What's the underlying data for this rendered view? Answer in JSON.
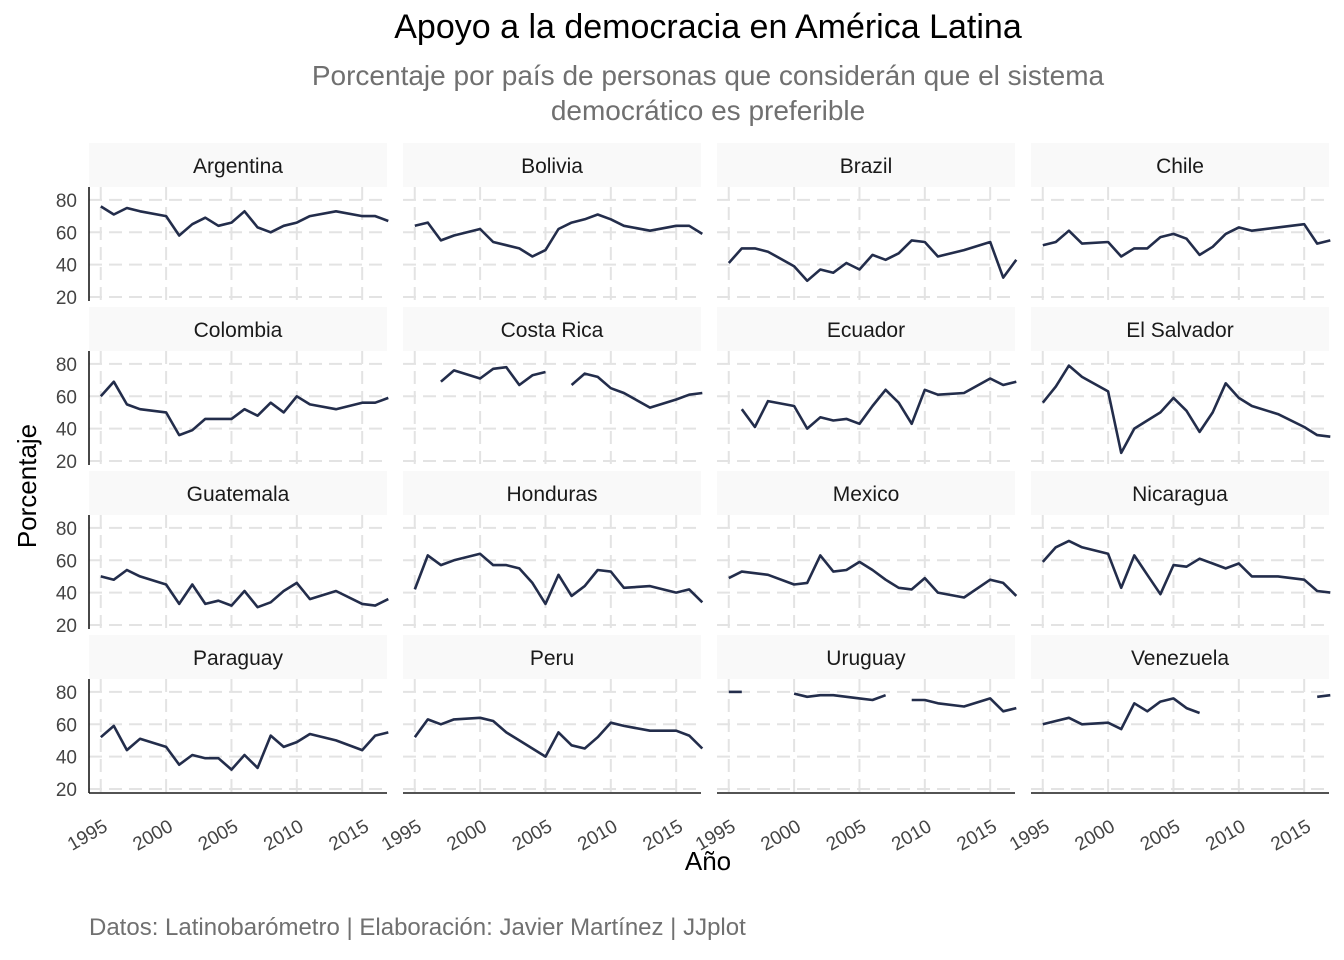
{
  "chart_data": {
    "type": "line",
    "title": "Apoyo a la democracia en América Latina",
    "subtitle": "Porcentaje por país de personas que considerán que el sistema democrático es preferible",
    "subtitle_lines": [
      "Porcentaje por país de personas que considerán que el sistema",
      "democrático es preferible"
    ],
    "caption": "Datos: Latinobarómetro | Elaboración: Javier Martínez | JJplot",
    "xlabel": "Año",
    "ylabel": "Porcentaje",
    "x_ticks": [
      1995,
      2000,
      2005,
      2010,
      2015
    ],
    "y_ticks": [
      20,
      40,
      60,
      80
    ],
    "xlim": [
      1994.1,
      2016.9
    ],
    "ylim": [
      17.5,
      88
    ],
    "grid": true,
    "line_color": "#232d4b",
    "years": [
      1995,
      1996,
      1997,
      1998,
      2000,
      2001,
      2002,
      2003,
      2004,
      2005,
      2006,
      2007,
      2008,
      2009,
      2010,
      2011,
      2013,
      2015,
      2016,
      2017
    ],
    "panels": [
      {
        "name": "Argentina",
        "values": [
          76,
          71,
          75,
          73,
          70,
          58,
          65,
          69,
          64,
          66,
          73,
          63,
          60,
          64,
          66,
          70,
          73,
          70,
          70,
          67
        ]
      },
      {
        "name": "Bolivia",
        "values": [
          64,
          66,
          55,
          58,
          62,
          54,
          52,
          50,
          45,
          49,
          62,
          66,
          68,
          71,
          68,
          64,
          61,
          64,
          64,
          59
        ]
      },
      {
        "name": "Brazil",
        "values": [
          41,
          50,
          50,
          48,
          39,
          30,
          37,
          35,
          41,
          37,
          46,
          43,
          47,
          55,
          54,
          45,
          49,
          54,
          32,
          43
        ]
      },
      {
        "name": "Chile",
        "values": [
          52,
          54,
          61,
          53,
          54,
          45,
          50,
          50,
          57,
          59,
          56,
          46,
          51,
          59,
          63,
          61,
          63,
          65,
          53,
          55
        ]
      },
      {
        "name": "Colombia",
        "values": [
          60,
          69,
          55,
          52,
          50,
          36,
          39,
          46,
          46,
          46,
          52,
          48,
          56,
          50,
          60,
          55,
          52,
          56,
          56,
          59
        ]
      },
      {
        "name": "Costa Rica",
        "values": [
          null,
          null,
          69,
          76,
          71,
          77,
          78,
          67,
          73,
          75,
          null,
          67,
          74,
          72,
          65,
          62,
          53,
          58,
          61,
          62
        ]
      },
      {
        "name": "Ecuador",
        "values": [
          null,
          52,
          41,
          57,
          54,
          40,
          47,
          45,
          46,
          43,
          54,
          64,
          56,
          43,
          64,
          61,
          62,
          71,
          67,
          69
        ]
      },
      {
        "name": "El Salvador",
        "values": [
          56,
          66,
          79,
          72,
          63,
          25,
          40,
          45,
          50,
          59,
          51,
          38,
          50,
          68,
          59,
          54,
          49,
          41,
          36,
          35
        ]
      },
      {
        "name": "Guatemala",
        "values": [
          50,
          48,
          54,
          50,
          45,
          33,
          45,
          33,
          35,
          32,
          41,
          31,
          34,
          41,
          46,
          36,
          41,
          33,
          32,
          36
        ]
      },
      {
        "name": "Honduras",
        "values": [
          42,
          63,
          57,
          60,
          64,
          57,
          57,
          55,
          46,
          33,
          51,
          38,
          44,
          54,
          53,
          43,
          44,
          40,
          42,
          34
        ]
      },
      {
        "name": "Mexico",
        "values": [
          49,
          53,
          52,
          51,
          45,
          46,
          63,
          53,
          54,
          59,
          54,
          48,
          43,
          42,
          49,
          40,
          37,
          48,
          46,
          38
        ]
      },
      {
        "name": "Nicaragua",
        "values": [
          59,
          68,
          72,
          68,
          64,
          43,
          63,
          51,
          39,
          57,
          56,
          61,
          58,
          55,
          58,
          50,
          50,
          48,
          41,
          40
        ]
      },
      {
        "name": "Paraguay",
        "values": [
          52,
          59,
          44,
          51,
          46,
          35,
          41,
          39,
          39,
          32,
          41,
          33,
          53,
          46,
          49,
          54,
          50,
          44,
          53,
          55
        ]
      },
      {
        "name": "Peru",
        "values": [
          52,
          63,
          60,
          63,
          64,
          62,
          55,
          50,
          45,
          40,
          55,
          47,
          45,
          52,
          61,
          59,
          56,
          56,
          53,
          45
        ]
      },
      {
        "name": "Uruguay",
        "values": [
          80,
          80,
          null,
          null,
          79,
          77,
          78,
          78,
          77,
          76,
          75,
          78,
          null,
          75,
          75,
          73,
          71,
          76,
          68,
          70
        ]
      },
      {
        "name": "Venezuela",
        "values": [
          60,
          62,
          64,
          60,
          61,
          57,
          73,
          68,
          74,
          76,
          70,
          67,
          null,
          null,
          null,
          null,
          null,
          null,
          77,
          78
        ]
      }
    ]
  }
}
